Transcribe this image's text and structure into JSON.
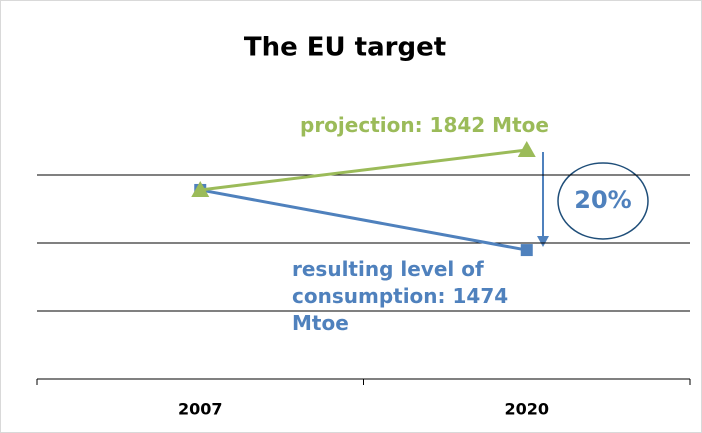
{
  "chart_data": {
    "type": "line",
    "title": "The EU target",
    "categories": [
      "2007",
      "2020"
    ],
    "series": [
      {
        "color": "#4f81bd",
        "marker": "square",
        "values": [
          1695,
          1474
        ]
      },
      {
        "color": "#9bbb59",
        "marker": "triangle",
        "values": [
          1695,
          1842
        ]
      }
    ],
    "ylim": [
      1000,
      2000
    ],
    "yticks": [
      1000,
      1250,
      1500,
      1750
    ],
    "grid": true,
    "annotations": [
      "projection: 1842 Mtoe",
      "resulting level of consumption: 1474 Mtoe",
      "20%"
    ]
  }
}
